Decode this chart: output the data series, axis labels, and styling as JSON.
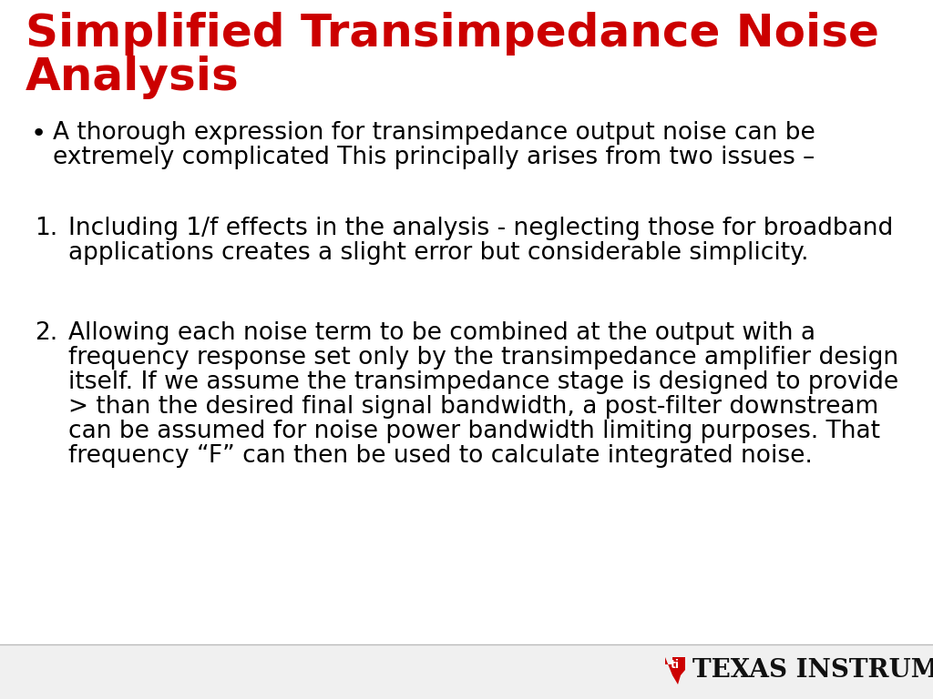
{
  "title_line1": "Simplified Transimpedance Noise",
  "title_line2": "Analysis",
  "title_color": "#CC0000",
  "title_fontsize": 36,
  "background_color": "#FFFFFF",
  "body_color": "#000000",
  "body_fontsize": 19,
  "bullet_line1": "A thorough expression for transimpedance output noise can be",
  "bullet_line2": "extremely complicated This principally arises from two issues –",
  "item1_line1": "Including 1/f effects in the analysis - neglecting those for broadband",
  "item1_line2": "applications creates a slight error but considerable simplicity.",
  "item2_lines": [
    "Allowing each noise term to be combined at the output with a",
    "frequency response set only by the transimpedance amplifier design",
    "itself. If we assume the transimpedance stage is designed to provide",
    "> than the desired final signal bandwidth, a post-filter downstream",
    "can be assumed for noise power bandwidth limiting purposes. That",
    "frequency “F” can then be used to calculate integrated noise."
  ],
  "footer_bg": "#f0f0f0",
  "footer_border": "#bbbbbb",
  "ti_text": "TEXAS INSTRUMENTS",
  "ti_text_color": "#111111",
  "ti_logo_color": "#CC0000"
}
